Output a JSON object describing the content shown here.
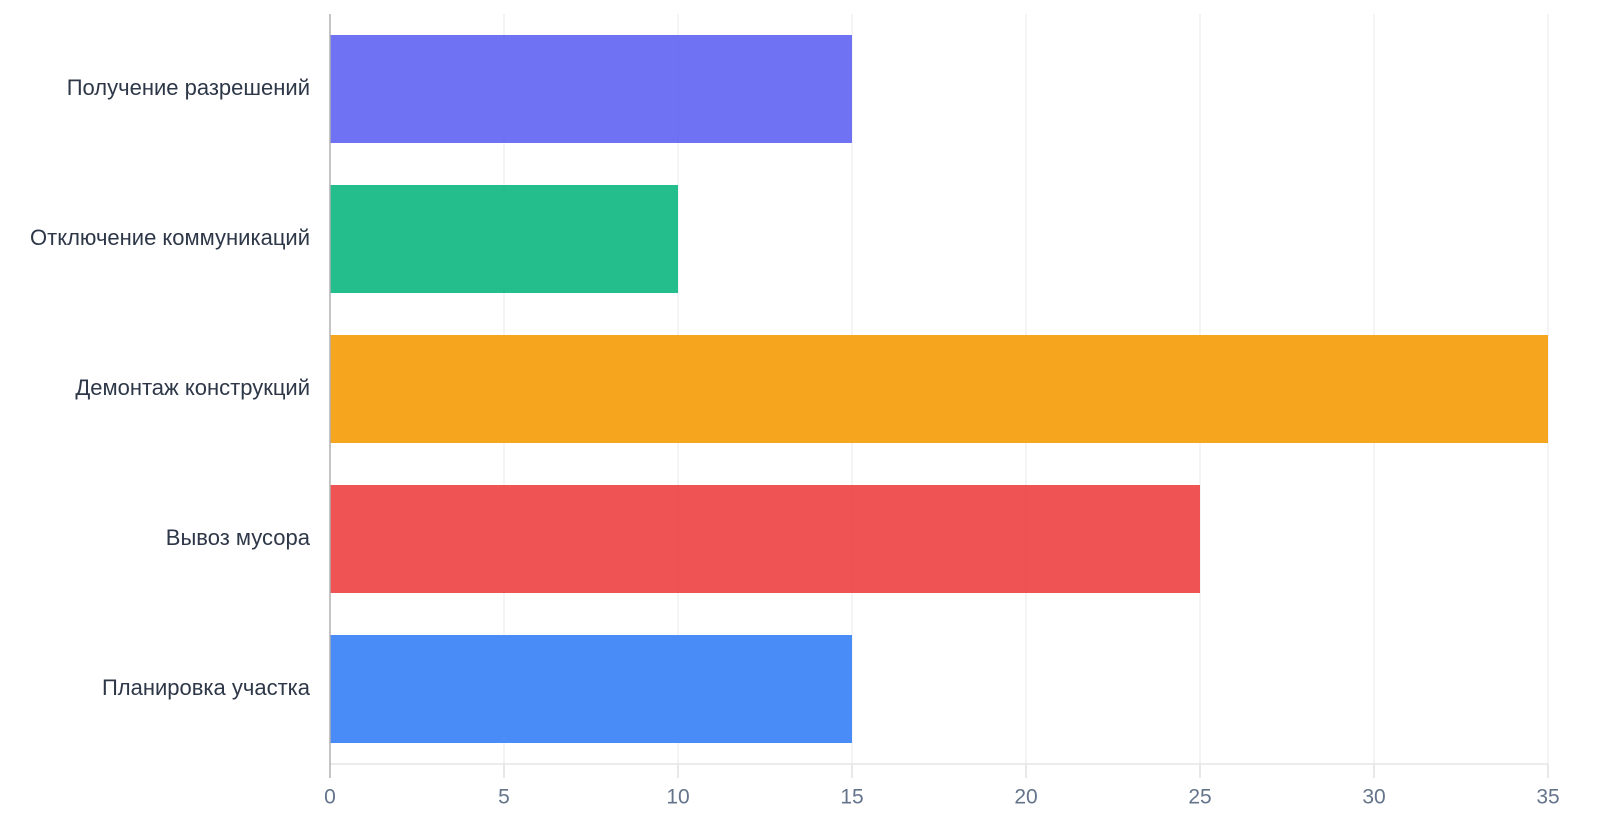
{
  "chart_data": {
    "type": "bar",
    "orientation": "horizontal",
    "categories": [
      "Получение разрешений",
      "Отключение коммуникаций",
      "Демонтаж конструкций",
      "Вывоз мусора",
      "Планировка участка"
    ],
    "values": [
      15,
      10,
      35,
      25,
      15
    ],
    "colors": [
      "#6366f1",
      "#10b981",
      "#f59e0b",
      "#ef4444",
      "#3b82f6"
    ],
    "xlim": [
      0,
      35
    ],
    "xticks": [
      0,
      5,
      10,
      15,
      20,
      25,
      30,
      35
    ],
    "grid": true
  }
}
